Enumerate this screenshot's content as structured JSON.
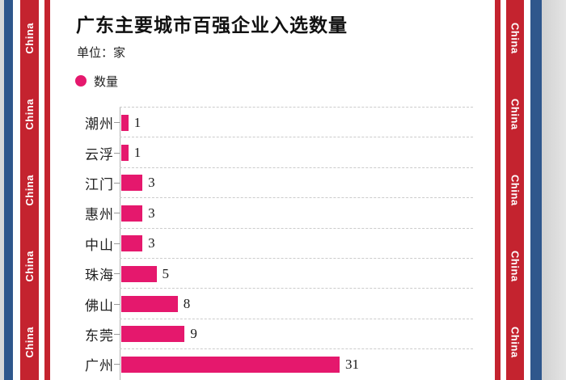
{
  "frame": {
    "china_label": "China",
    "stripe_red": "#c4232f",
    "stripe_blue": "#2f578c"
  },
  "header": {
    "title": "广东主要城市百强企业入选数量",
    "unit_label": "单位：家"
  },
  "legend": {
    "label": "数量",
    "dot_color": "#e5186d"
  },
  "chart_data": {
    "type": "bar",
    "orientation": "horizontal",
    "title": "广东主要城市百强企业入选数量",
    "unit": "家",
    "series_name": "数量",
    "categories": [
      "潮州",
      "云浮",
      "江门",
      "惠州",
      "中山",
      "珠海",
      "佛山",
      "东莞",
      "广州"
    ],
    "values": [
      1,
      1,
      3,
      3,
      3,
      5,
      8,
      9,
      31
    ],
    "xlim": [
      0,
      31
    ],
    "value_labels_shown": true,
    "grid": "dashed horizontal separators",
    "legend_position": "top-left",
    "bar_color": "#e5186d"
  }
}
